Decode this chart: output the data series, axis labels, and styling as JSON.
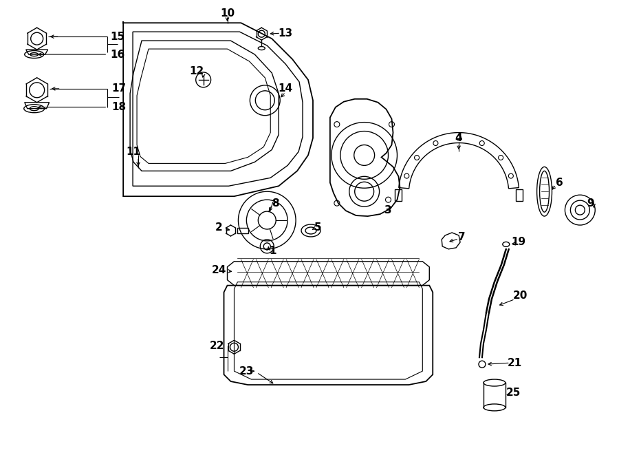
{
  "bg_color": "#ffffff",
  "line_color": "#000000",
  "figsize": [
    9.0,
    6.61
  ],
  "dpi": 100
}
